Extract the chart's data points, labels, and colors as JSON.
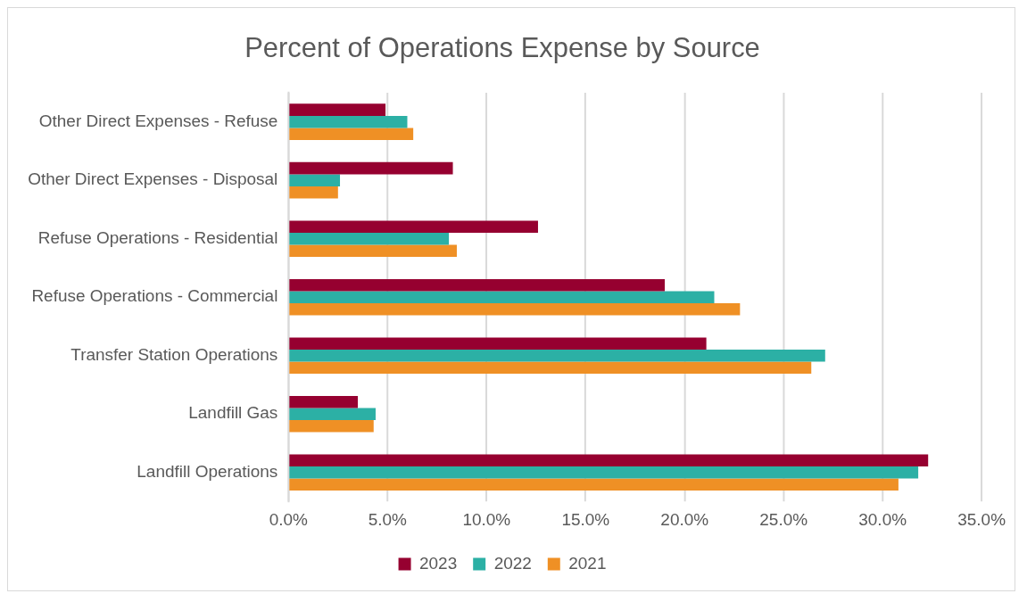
{
  "chart_data": {
    "type": "bar",
    "orientation": "horizontal",
    "title": "Percent of Operations Expense by Source",
    "categories": [
      "Other Direct Expenses - Refuse",
      "Other Direct Expenses - Disposal",
      "Refuse Operations - Residential",
      "Refuse Operations - Commercial",
      "Transfer Station Operations",
      "Landfill Gas",
      "Landfill Operations"
    ],
    "series": [
      {
        "name": "2023",
        "color": "#960030",
        "values": [
          4.9,
          8.3,
          12.6,
          19.0,
          21.1,
          3.5,
          32.3
        ]
      },
      {
        "name": "2022",
        "color": "#2cb0a5",
        "values": [
          6.0,
          2.6,
          8.1,
          21.5,
          27.1,
          4.4,
          31.8
        ]
      },
      {
        "name": "2021",
        "color": "#ef9025",
        "values": [
          6.3,
          2.5,
          8.5,
          22.8,
          26.4,
          4.3,
          30.8
        ]
      }
    ],
    "xlim": [
      0,
      35
    ],
    "xticks": [
      {
        "value": 0,
        "label": "0.0%"
      },
      {
        "value": 5,
        "label": "5.0%"
      },
      {
        "value": 10,
        "label": "10.0%"
      },
      {
        "value": 15,
        "label": "15.0%"
      },
      {
        "value": 20,
        "label": "20.0%"
      },
      {
        "value": 25,
        "label": "25.0%"
      },
      {
        "value": 30,
        "label": "30.0%"
      },
      {
        "value": 35,
        "label": "35.0%"
      }
    ],
    "grid": "x",
    "legend": "bottom"
  }
}
